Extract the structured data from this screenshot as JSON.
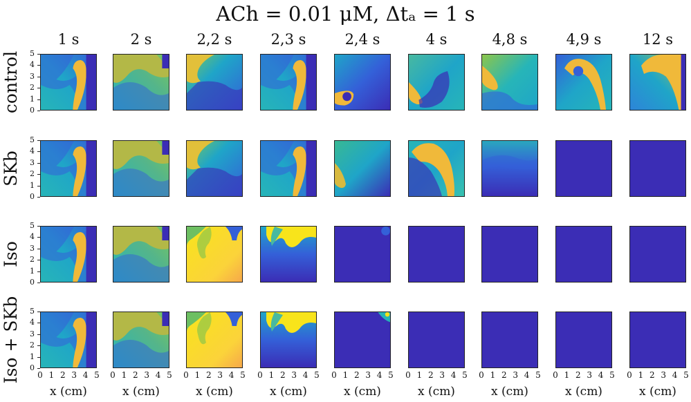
{
  "figure": {
    "title": "ACh = 0.01 μM, Δtₐ = 1 s",
    "columns": [
      "1 s",
      "2 s",
      "2,2 s",
      "2,3 s",
      "2,4 s",
      "4 s",
      "4,8 s",
      "4,9 s",
      "12 s"
    ],
    "rows": [
      "control",
      "SKb",
      "Iso",
      "Iso + SKb"
    ],
    "y_ticks": [
      "0",
      "1",
      "2",
      "3",
      "4",
      "5"
    ],
    "x_ticks": [
      "0",
      "1",
      "2",
      "3",
      "4",
      "5"
    ],
    "xlabel": "x (cm)",
    "colormap": {
      "name": "parula",
      "low": "#3b2db5",
      "mid": "#1fa5c8",
      "high": "#f8e41b",
      "front": "#f0b93a"
    },
    "panel_states": [
      [
        "spiral-tip-right",
        "wave-top",
        "spiral-tip-left",
        "spiral-tip-right",
        "spiral-small-left",
        "spiral-left-low",
        "spiral-left-mid",
        "spiral-top-center",
        "wave-top-right"
      ],
      [
        "spiral-tip-right",
        "wave-top",
        "spiral-tip-left",
        "spiral-tip-right",
        "wave-fading-left",
        "spiral-large",
        "fading-cyan",
        "blank",
        "blank"
      ],
      [
        "spiral-tip-right",
        "wave-top",
        "yellow-flood",
        "yellow-top-fade",
        "blank-corner",
        "blank",
        "blank",
        "blank",
        "blank"
      ],
      [
        "spiral-tip-right",
        "wave-top",
        "yellow-flood",
        "yellow-top-fade",
        "blank-corner-bright",
        "blank",
        "blank",
        "blank",
        "blank"
      ]
    ]
  }
}
